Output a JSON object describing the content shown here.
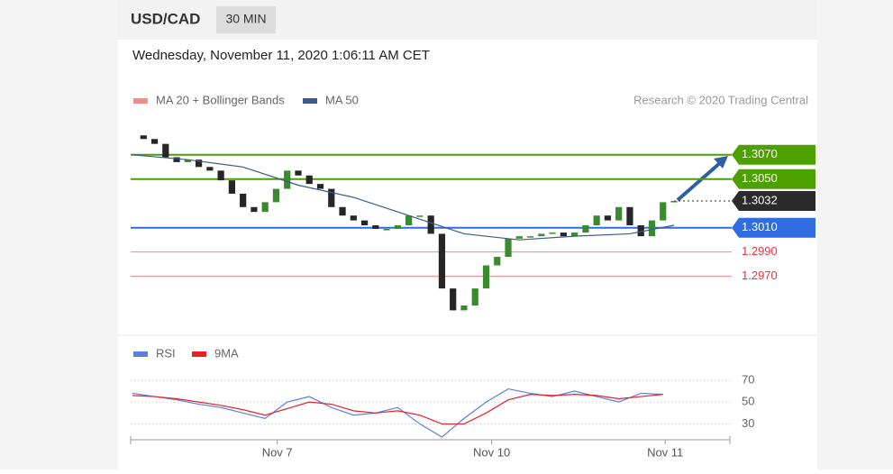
{
  "header": {
    "symbol": "USD/CAD",
    "interval": "30 MIN",
    "timestamp": "Wednesday, November 11, 2020 1:06:11 AM CET",
    "credit": "Research © 2020 Trading Central"
  },
  "chart_data": [
    {
      "type": "candlestick",
      "legend": [
        {
          "name": "MA 20 + Bollinger Bands",
          "color": "#f28b8b"
        },
        {
          "name": "MA 50",
          "color": "#3d5a8f"
        }
      ],
      "closes": [
        1.3086,
        1.3083,
        1.3079,
        1.3068,
        1.3064,
        1.3066,
        1.306,
        1.3057,
        1.3049,
        1.3038,
        1.3027,
        1.3023,
        1.3031,
        1.3042,
        1.3057,
        1.3053,
        1.3046,
        1.3042,
        1.3027,
        1.302,
        1.3016,
        1.3012,
        1.3009,
        1.3009,
        1.3012,
        1.302,
        1.302,
        1.3005,
        1.296,
        1.2942,
        1.2946,
        1.296,
        1.2979,
        1.2986,
        1.3001,
        1.3003,
        1.3003,
        1.3005,
        1.3006,
        1.3003,
        1.3006,
        1.3012,
        1.302,
        1.3016,
        1.3027,
        1.3012,
        1.3003,
        1.3016,
        1.3031,
        1.3032
      ],
      "up_color": "#3a8a2e",
      "down_color": "#262626",
      "series": [
        {
          "name": "MA 50",
          "color": "#3d5a8f",
          "x": [
            0,
            5,
            10,
            15,
            20,
            25,
            30,
            35,
            40,
            45,
            49
          ],
          "values": [
            1.307,
            1.3066,
            1.306,
            1.3045,
            1.3035,
            1.302,
            1.3005,
            1.3,
            1.3003,
            1.3005,
            1.3012
          ]
        }
      ],
      "levels": [
        {
          "value": 1.307,
          "label": "1.3070",
          "color": "#4ca000",
          "style": "box"
        },
        {
          "value": 1.305,
          "label": "1.3050",
          "color": "#4ca000",
          "style": "box"
        },
        {
          "value": 1.3032,
          "label": "1.3032",
          "color": "#2b2b2b",
          "style": "dotted-box"
        },
        {
          "value": 1.301,
          "label": "1.3010",
          "color": "#2f6de0",
          "style": "box"
        },
        {
          "value": 1.299,
          "label": "1.2990",
          "color": "#e8333a",
          "style": "text"
        },
        {
          "value": 1.297,
          "label": "1.2970",
          "color": "#e8333a",
          "style": "text"
        }
      ],
      "xlim": [
        0,
        49
      ],
      "ylim": [
        1.2923,
        1.3101
      ]
    },
    {
      "type": "line",
      "series": [
        {
          "name": "RSI",
          "color": "#5b7fe0",
          "values": [
            58,
            55,
            52,
            48,
            45,
            40,
            35,
            50,
            55,
            45,
            38,
            40,
            45,
            30,
            18,
            35,
            50,
            62,
            58,
            55,
            60,
            55,
            50,
            58,
            57
          ]
        },
        {
          "name": "9MA",
          "color": "#e8202a",
          "values": [
            56,
            55,
            53,
            50,
            47,
            43,
            38,
            44,
            50,
            48,
            42,
            40,
            42,
            38,
            30,
            30,
            40,
            52,
            57,
            56,
            57,
            56,
            53,
            55,
            57
          ]
        }
      ],
      "x": [
        0,
        2,
        4,
        6,
        8,
        10,
        12,
        14,
        16,
        18,
        20,
        22,
        24,
        26,
        28,
        30,
        32,
        34,
        36,
        38,
        40,
        42,
        44,
        46,
        48
      ],
      "xlim": [
        0,
        49
      ],
      "ylim": [
        18,
        88
      ],
      "yticks": [
        70,
        50,
        30
      ],
      "xticks": [
        {
          "value": 13.1,
          "label": "Nov 7"
        },
        {
          "value": 32.5,
          "label": "Nov 10"
        },
        {
          "value": 48.2,
          "label": "Nov 11"
        }
      ]
    }
  ]
}
